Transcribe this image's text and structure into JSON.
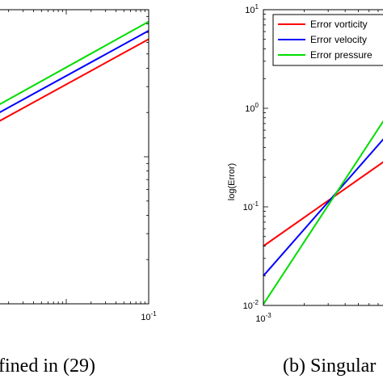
{
  "captions": {
    "left": "fined in (29)",
    "right": "(b) Singular"
  },
  "chart_data": [
    {
      "type": "line",
      "panel": "left (cropped)",
      "x_scale": "log",
      "y_scale": "log",
      "grid": false,
      "xlim": [
        0.001,
        0.1
      ],
      "x_tick_labels": [
        "10-1"
      ],
      "series": [
        {
          "color": "#ff0000",
          "x": [
            0.001,
            0.1
          ],
          "y": [
            0.0153,
            0.063
          ]
        },
        {
          "color": "#0000ff",
          "x": [
            0.001,
            0.1
          ],
          "y": [
            0.0175,
            0.072
          ]
        },
        {
          "color": "#00dd00",
          "x": [
            0.001,
            0.1
          ],
          "y": [
            0.0198,
            0.083
          ]
        }
      ]
    },
    {
      "type": "line",
      "panel": "right (cropped)",
      "x_scale": "log",
      "y_scale": "log",
      "grid": false,
      "ylabel": "log(Error)",
      "xlim": [
        0.001,
        0.01
      ],
      "ylim": [
        0.01,
        10
      ],
      "x_tick_labels": [
        "10-3"
      ],
      "y_tick_labels": [
        "10-2",
        "10-1",
        "100",
        "101"
      ],
      "legend_position": "top-right",
      "series": [
        {
          "name": "Error vorticity",
          "color": "#ff0000",
          "x": [
            0.001,
            0.01
          ],
          "y": [
            0.04,
            0.37
          ]
        },
        {
          "name": "Error velocity",
          "color": "#0000ff",
          "x": [
            0.001,
            0.01
          ],
          "y": [
            0.02,
            0.74
          ]
        },
        {
          "name": "Error pressure",
          "color": "#00dd00",
          "x": [
            0.001,
            0.01
          ],
          "y": [
            0.0103,
            1.3
          ]
        }
      ]
    }
  ]
}
